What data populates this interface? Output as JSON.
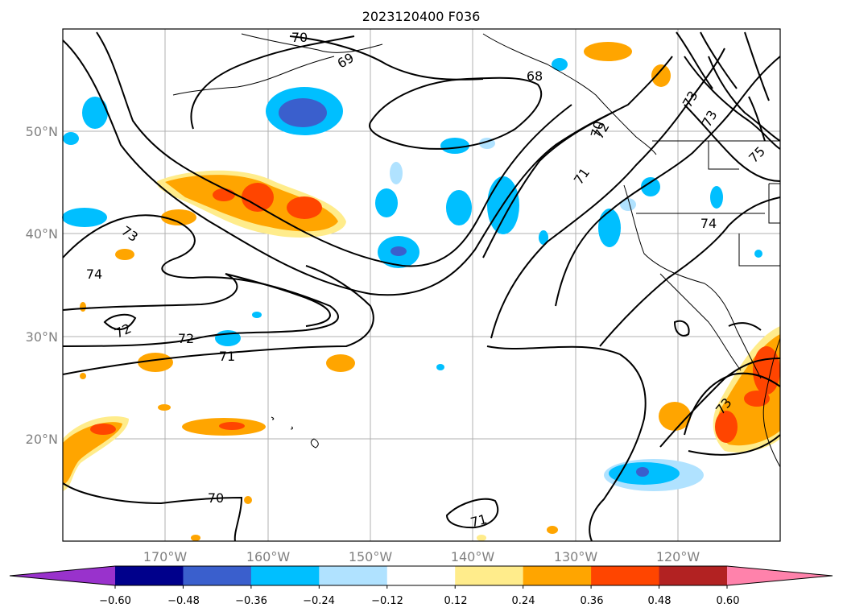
{
  "title": "2023120400 F036",
  "lat_labels": [
    "50°N",
    "40°N",
    "30°N",
    "20°N"
  ],
  "lon_labels": [
    "170°W",
    "160°W",
    "150°W",
    "140°W",
    "130°W",
    "120°W"
  ],
  "contour_labels": [
    "70",
    "69",
    "68",
    "71",
    "72",
    "73",
    "74",
    "72",
    "73",
    "74",
    "71",
    "72",
    "73",
    "70",
    "71",
    "73",
    "75",
    "70"
  ],
  "colorbar": {
    "tick_labels": [
      "−0.60",
      "−0.48",
      "−0.36",
      "−0.24",
      "−0.12",
      "0.12",
      "0.24",
      "0.36",
      "0.48",
      "0.60"
    ],
    "colors": [
      "#9932cc",
      "#00008b",
      "#3a5fcd",
      "#00bfff",
      "#b0e2ff",
      "#ffffff",
      "#ffec8b",
      "#ffa500",
      "#ff4500",
      "#b22222",
      "#ff82ab"
    ]
  },
  "colors": {
    "contour": "#000000",
    "coast": "#000000",
    "grid": "#b0b0b0"
  }
}
